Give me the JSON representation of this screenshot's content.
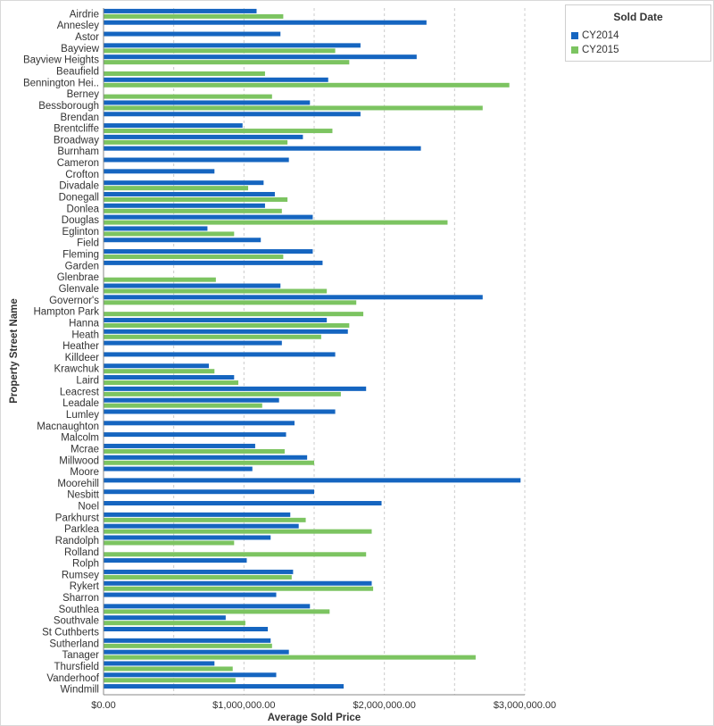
{
  "chart_data": {
    "type": "bar",
    "orientation": "horizontal",
    "ylabel": "Property Street Name",
    "xlabel": "Average Sold Price",
    "xlim": [
      0,
      3000000
    ],
    "xticks": [
      0,
      1000000,
      2000000,
      3000000
    ],
    "xtick_labels": [
      "$0.00",
      "$1,000,000.00",
      "$2,000,000.00",
      "$3,000,000.00"
    ],
    "grid": "vertical dashed",
    "legend": {
      "title": "Sold Date",
      "position": "top-right"
    },
    "categories": [
      "Airdrie",
      "Annesley",
      "Astor",
      "Bayview",
      "Bayview Heights",
      "Beaufield",
      "Bennington Hei..",
      "Berney",
      "Bessborough",
      "Brendan",
      "Brentcliffe",
      "Broadway",
      "Burnham",
      "Cameron",
      "Crofton",
      "Divadale",
      "Donegall",
      "Donlea",
      "Douglas",
      "Eglinton",
      "Field",
      "Fleming",
      "Garden",
      "Glenbrae",
      "Glenvale",
      "Governor's",
      "Hampton Park",
      "Hanna",
      "Heath",
      "Heather",
      "Killdeer",
      "Krawchuk",
      "Laird",
      "Leacrest",
      "Leadale",
      "Lumley",
      "Macnaughton",
      "Malcolm",
      "Mcrae",
      "Millwood",
      "Moore",
      "Moorehill",
      "Nesbitt",
      "Noel",
      "Parkhurst",
      "Parklea",
      "Randolph",
      "Rolland",
      "Rolph",
      "Rumsey",
      "Rykert",
      "Sharron",
      "Southlea",
      "Southvale",
      "St Cuthberts",
      "Sutherland",
      "Tanager",
      "Thursfield",
      "Vanderhoof",
      "Windmill"
    ],
    "series": [
      {
        "name": "CY2014",
        "color": "#1565c0",
        "values": [
          1090000,
          2300000,
          1260000,
          1830000,
          2230000,
          null,
          1600000,
          null,
          1470000,
          1830000,
          990000,
          1420000,
          2260000,
          1320000,
          790000,
          1140000,
          1220000,
          1150000,
          1490000,
          740000,
          1120000,
          1490000,
          1560000,
          null,
          1260000,
          2700000,
          null,
          1590000,
          1740000,
          1270000,
          1650000,
          750000,
          930000,
          1870000,
          1250000,
          1650000,
          1360000,
          1300000,
          1080000,
          1450000,
          1060000,
          2970000,
          1500000,
          1980000,
          1330000,
          1390000,
          1190000,
          null,
          1020000,
          1350000,
          1910000,
          1230000,
          1470000,
          870000,
          1170000,
          1190000,
          1320000,
          790000,
          1230000,
          1710000
        ]
      },
      {
        "name": "CY2015",
        "color": "#7cc461",
        "values": [
          1280000,
          null,
          null,
          1650000,
          1750000,
          1150000,
          2890000,
          1200000,
          2700000,
          null,
          1630000,
          1310000,
          null,
          null,
          null,
          1030000,
          1310000,
          1270000,
          2450000,
          930000,
          null,
          1280000,
          null,
          800000,
          1590000,
          1800000,
          1850000,
          1750000,
          1550000,
          null,
          null,
          790000,
          960000,
          1690000,
          1130000,
          null,
          null,
          null,
          1290000,
          1500000,
          null,
          null,
          null,
          null,
          1440000,
          1910000,
          930000,
          1870000,
          null,
          1340000,
          1920000,
          null,
          1610000,
          1010000,
          null,
          1200000,
          2650000,
          920000,
          940000,
          null
        ]
      }
    ]
  }
}
